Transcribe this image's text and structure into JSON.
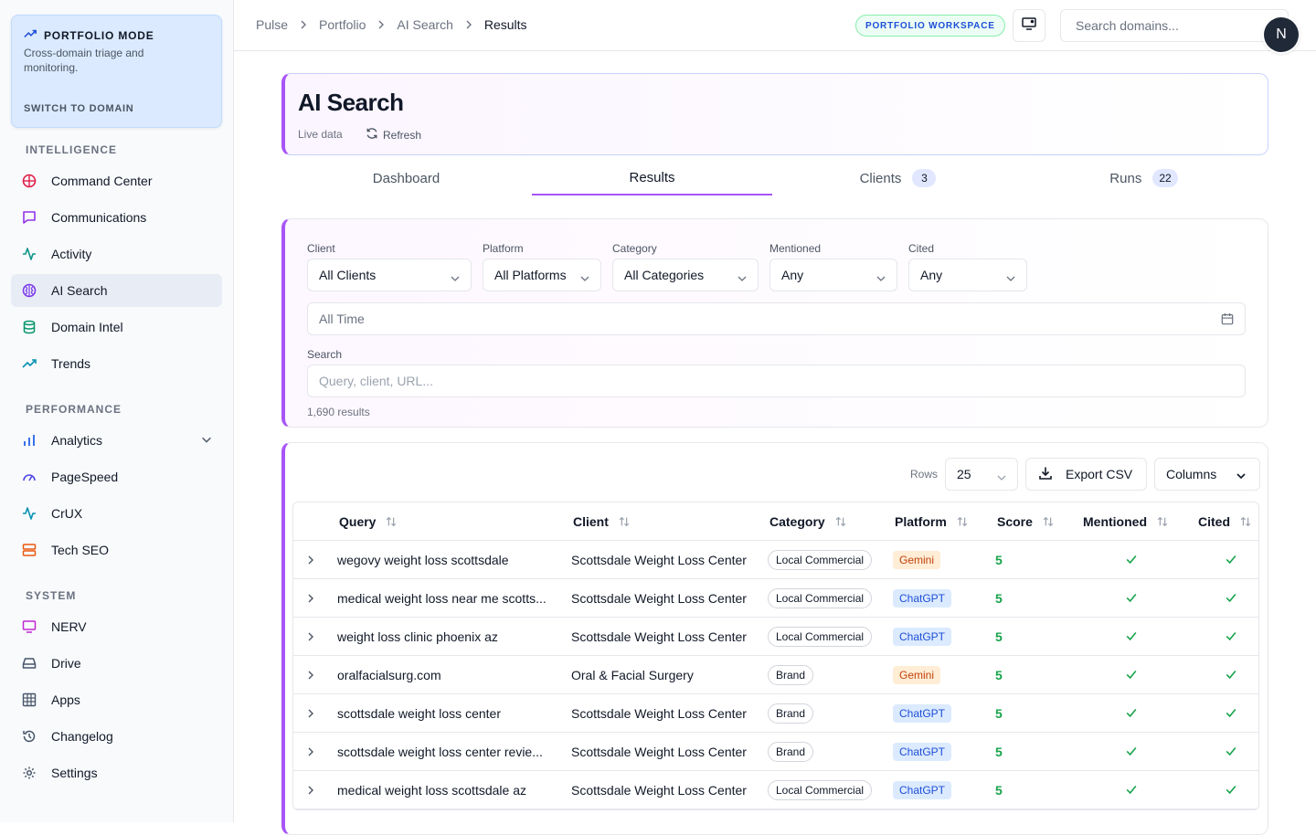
{
  "sidebar": {
    "mode": {
      "title": "PORTFOLIO MODE",
      "desc": "Cross-domain triage and monitoring.",
      "switch": "SWITCH TO DOMAIN"
    },
    "sections": [
      {
        "title": "INTELLIGENCE",
        "items": [
          {
            "label": "Command Center",
            "icon": "target-icon"
          },
          {
            "label": "Communications",
            "icon": "message-icon"
          },
          {
            "label": "Activity",
            "icon": "pulse-icon"
          },
          {
            "label": "AI Search",
            "icon": "brain-icon"
          },
          {
            "label": "Domain Intel",
            "icon": "database-icon"
          },
          {
            "label": "Trends",
            "icon": "trend-icon"
          }
        ]
      },
      {
        "title": "PERFORMANCE",
        "items": [
          {
            "label": "Analytics",
            "icon": "bar-chart-icon"
          },
          {
            "label": "PageSpeed",
            "icon": "gauge-icon"
          },
          {
            "label": "CrUX",
            "icon": "pulse-icon"
          },
          {
            "label": "Tech SEO",
            "icon": "server-icon"
          }
        ]
      },
      {
        "title": "SYSTEM",
        "items": [
          {
            "label": "NERV",
            "icon": "monitor-icon"
          },
          {
            "label": "Drive",
            "icon": "drive-icon"
          },
          {
            "label": "Apps",
            "icon": "grid-icon"
          },
          {
            "label": "Changelog",
            "icon": "history-icon"
          },
          {
            "label": "Settings",
            "icon": "gear-icon"
          }
        ]
      }
    ]
  },
  "topbar": {
    "breadcrumbs": [
      "Pulse",
      "Portfolio",
      "AI Search",
      "Results"
    ],
    "workspace_badge": "PORTFOLIO WORKSPACE",
    "search_placeholder": "Search domains...",
    "avatar": "N"
  },
  "header": {
    "title": "AI Search",
    "live": "Live data",
    "refresh": "Refresh"
  },
  "tabs": [
    {
      "label": "Dashboard",
      "count": ""
    },
    {
      "label": "Results",
      "count": ""
    },
    {
      "label": "Clients",
      "count": "3"
    },
    {
      "label": "Runs",
      "count": "22"
    }
  ],
  "filters": {
    "client": {
      "label": "Client",
      "value": "All Clients"
    },
    "platform": {
      "label": "Platform",
      "value": "All Platforms"
    },
    "category": {
      "label": "Category",
      "value": "All Categories"
    },
    "mentioned": {
      "label": "Mentioned",
      "value": "Any"
    },
    "cited": {
      "label": "Cited",
      "value": "Any"
    },
    "date": "All Time",
    "search_label": "Search",
    "search_placeholder": "Query, client, URL...",
    "result_count": "1,690 results"
  },
  "table": {
    "rows_label": "Rows",
    "rows_value": "25",
    "export": "Export CSV",
    "columns": "Columns",
    "headers": [
      "Query",
      "Client",
      "Category",
      "Platform",
      "Score",
      "Mentioned",
      "Cited"
    ],
    "rows": [
      {
        "query": "wegovy weight loss scottsdale",
        "client": "Scottsdale Weight Loss Center",
        "category": "Local Commercial",
        "platform": "Gemini",
        "score": "5"
      },
      {
        "query": "medical weight loss near me scotts...",
        "client": "Scottsdale Weight Loss Center",
        "category": "Local Commercial",
        "platform": "ChatGPT",
        "score": "5"
      },
      {
        "query": "weight loss clinic phoenix az",
        "client": "Scottsdale Weight Loss Center",
        "category": "Local Commercial",
        "platform": "ChatGPT",
        "score": "5"
      },
      {
        "query": "oralfacialsurg.com",
        "client": "Oral & Facial Surgery",
        "category": "Brand",
        "platform": "Gemini",
        "score": "5"
      },
      {
        "query": "scottsdale weight loss center",
        "client": "Scottsdale Weight Loss Center",
        "category": "Brand",
        "platform": "ChatGPT",
        "score": "5"
      },
      {
        "query": "scottsdale weight loss center revie...",
        "client": "Scottsdale Weight Loss Center",
        "category": "Brand",
        "platform": "ChatGPT",
        "score": "5"
      },
      {
        "query": "medical weight loss scottsdale az",
        "client": "Scottsdale Weight Loss Center",
        "category": "Local Commercial",
        "platform": "ChatGPT",
        "score": "5"
      }
    ]
  },
  "colors": {
    "accent": "#a855f7",
    "score": "#16a34a",
    "check": "#16a34a"
  }
}
